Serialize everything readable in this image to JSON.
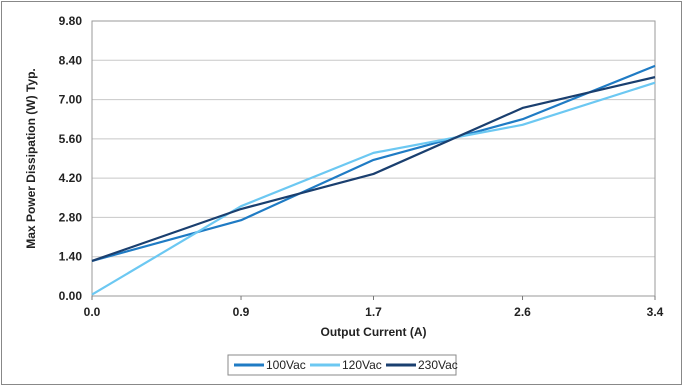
{
  "chart_data": {
    "type": "line",
    "xlabel": "Output Current (A)",
    "ylabel": "Max Power Dissipation  (W) Typ.",
    "x": [
      0.0,
      0.9,
      1.7,
      2.6,
      3.4
    ],
    "x_tick_labels": [
      "0.0",
      "0.9",
      "1.7",
      "2.6",
      "3.4"
    ],
    "y_tick_labels": [
      "0.00",
      "1.40",
      "2.80",
      "4.20",
      "5.60",
      "7.00",
      "8.40",
      "9.80"
    ],
    "ylim": [
      0,
      9.8
    ],
    "grid": "horizontal",
    "legend_position": "bottom",
    "series": [
      {
        "name": "100Vac",
        "color": "#1f7bc4",
        "values": [
          1.25,
          2.7,
          4.85,
          6.3,
          8.2
        ]
      },
      {
        "name": "120Vac",
        "color": "#6cc8f2",
        "values": [
          0.05,
          3.2,
          5.1,
          6.1,
          7.6
        ]
      },
      {
        "name": "230Vac",
        "color": "#1a3f6f",
        "values": [
          1.25,
          3.1,
          4.35,
          6.7,
          7.8
        ]
      }
    ]
  }
}
